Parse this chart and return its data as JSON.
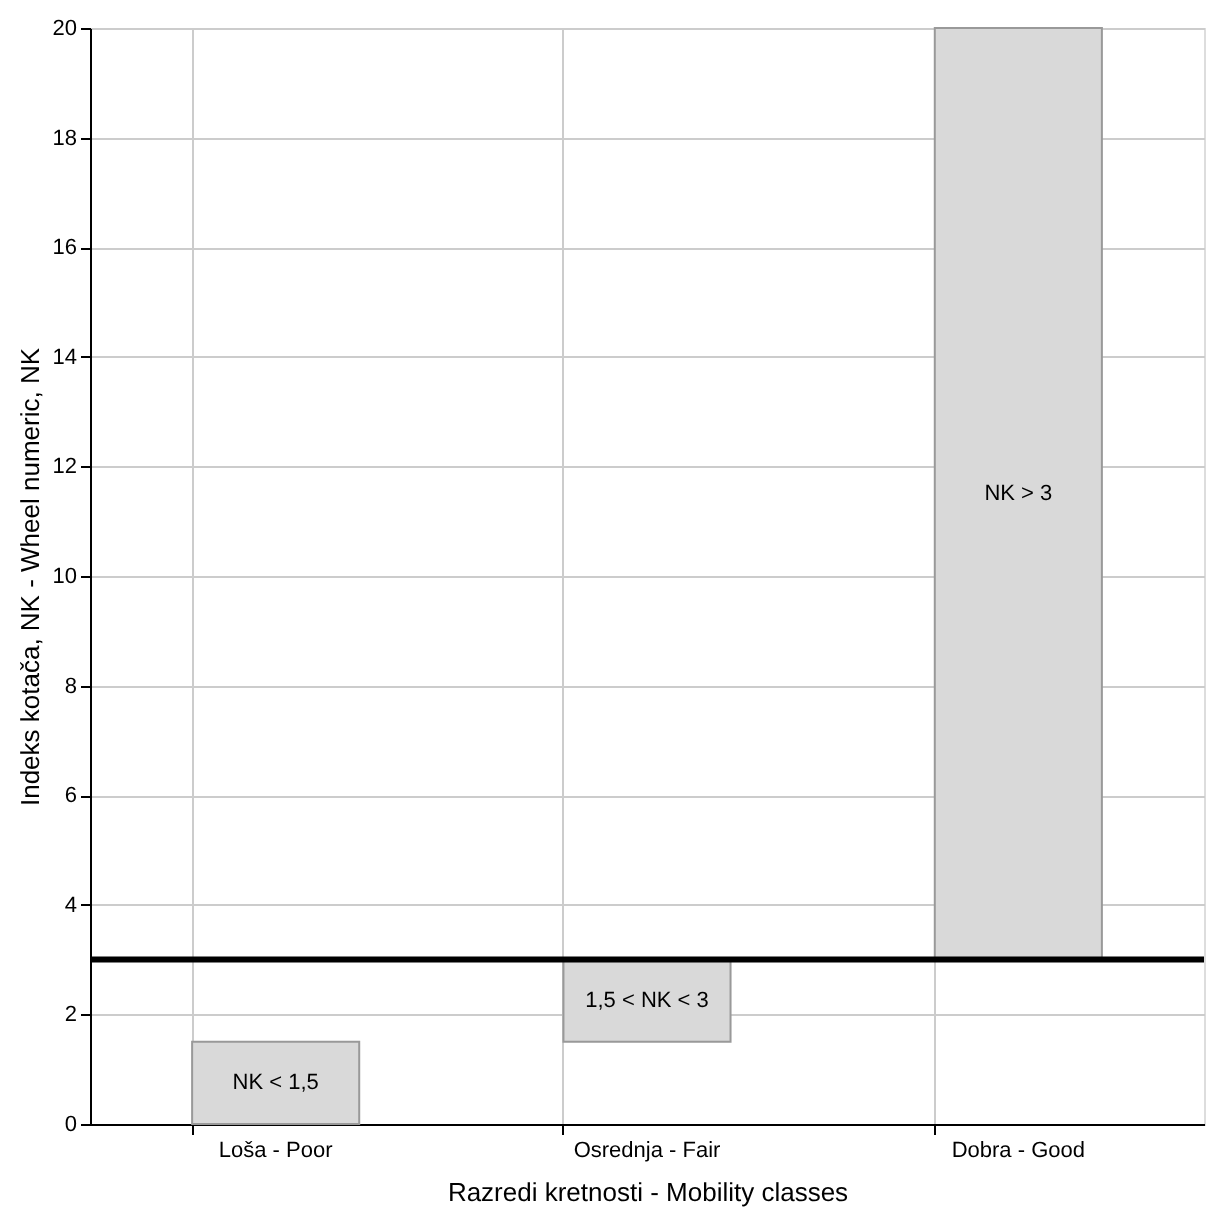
{
  "chart_data": {
    "type": "bar",
    "xlabel": "Razredi kretnosti  -  Mobility classes",
    "ylabel": "Indeks kotača, NK  -  Wheel numeric, NK",
    "categories": [
      "Loša - Poor",
      "Osrednja - Fair",
      "Dobra - Good"
    ],
    "base": [
      0,
      1.5,
      3
    ],
    "values": [
      1.5,
      1.5,
      17
    ],
    "color": "#d9d9d9",
    "ylim": [
      0,
      20
    ],
    "yticks": [
      0,
      2,
      4,
      6,
      8,
      10,
      12,
      14,
      16,
      18,
      20
    ],
    "grid": true,
    "ref_lines": [
      {
        "axis": "y",
        "value": 3,
        "color": "#000000"
      }
    ],
    "annotations": [
      "NK < 1,5",
      "1,5 < NK < 3",
      "NK > 3"
    ]
  }
}
